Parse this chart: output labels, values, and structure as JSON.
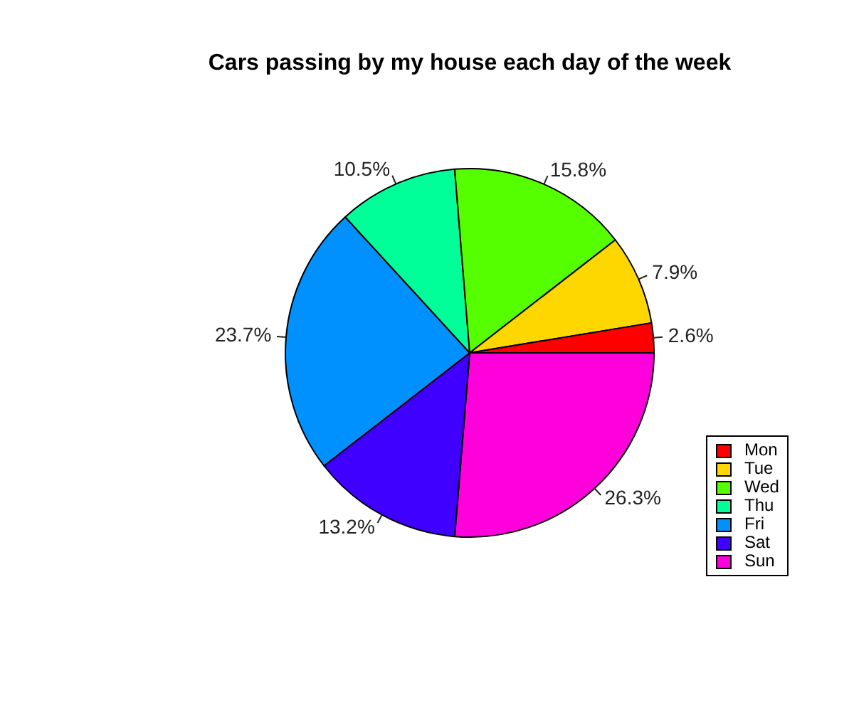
{
  "chart_data": {
    "type": "pie",
    "title": "Cars passing by my house each day of the week",
    "categories": [
      "Mon",
      "Tue",
      "Wed",
      "Thu",
      "Fri",
      "Sat",
      "Sun"
    ],
    "values": [
      2.6,
      7.9,
      15.8,
      10.5,
      23.7,
      13.2,
      26.3
    ],
    "colors": [
      "#ff0000",
      "#ffd700",
      "#55ff00",
      "#00ff99",
      "#0091ff",
      "#3f00ff",
      "#ff00dc"
    ],
    "value_labels": [
      "2.6%",
      "7.9%",
      "15.8%",
      "10.5%",
      "23.7%",
      "13.2%",
      "26.3%"
    ],
    "legend": "bottom right"
  }
}
